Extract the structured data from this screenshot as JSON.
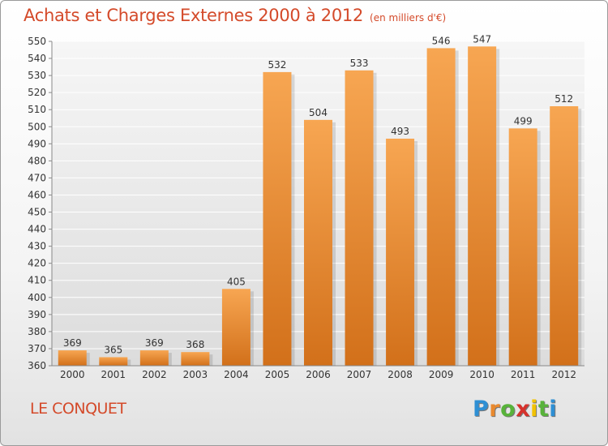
{
  "header": {
    "title": "Achats et Charges Externes 2000 à 2012",
    "unit": "(en milliers d'€)"
  },
  "footer": {
    "city": "LE CONQUET"
  },
  "logo": {
    "letters": [
      "P",
      "r",
      "o",
      "x",
      "i",
      "t",
      "i"
    ],
    "colors": [
      "#2e8fd4",
      "#e9892e",
      "#58b33a",
      "#d6322c",
      "#f2c200",
      "#58b33a",
      "#2e8fd4"
    ]
  },
  "colors": {
    "accent": "#d44a2a",
    "bar_top": "#f7a652",
    "bar_bottom": "#d2701a",
    "grid": "#ffffff"
  },
  "chart_data": {
    "type": "bar",
    "categories": [
      "2000",
      "2001",
      "2002",
      "2003",
      "2004",
      "2005",
      "2006",
      "2007",
      "2008",
      "2009",
      "2010",
      "2011",
      "2012"
    ],
    "values": [
      369,
      365,
      369,
      368,
      405,
      532,
      504,
      533,
      493,
      546,
      547,
      499,
      512
    ],
    "title": "Achats et Charges Externes 2000 à 2012",
    "ylim": [
      360,
      550
    ],
    "yticks": [
      360,
      370,
      380,
      390,
      400,
      410,
      420,
      430,
      440,
      450,
      460,
      470,
      480,
      490,
      500,
      510,
      520,
      530,
      540,
      550
    ],
    "grid": true,
    "data_labels": true
  }
}
